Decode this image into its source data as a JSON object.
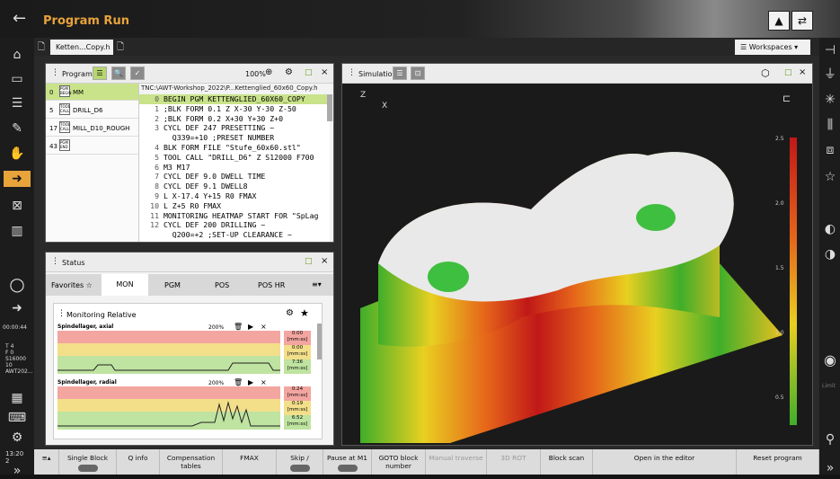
{
  "header": {
    "title": "Program Run"
  },
  "left_status": {
    "time1": "00:00:44",
    "t": "T",
    "t_val": "4",
    "f": "F",
    "f_val": "0",
    "s": "S",
    "s_val": "16000",
    "t2": "10",
    "tool": "AWT202...",
    "clock": "13:20",
    "clock2": "2"
  },
  "tabs": [
    {
      "label": "Ketten...Copy.h"
    }
  ],
  "workspaces_label": "Workspaces",
  "program_panel": {
    "title": "Program",
    "zoom": "100%",
    "path": "TNC:\\AWT-Workshop_2022\\P...Kettenglied_60x60_Copy.h",
    "tools": [
      {
        "num": "0",
        "badge": "PGM BEGIN",
        "name": "MM"
      },
      {
        "num": "5",
        "badge": "TOOL CALL",
        "name": "DRILL_D6"
      },
      {
        "num": "17",
        "badge": "TOOL CALL",
        "name": "MILL_D10_ROUGH"
      },
      {
        "num": "43",
        "badge": "PGM END",
        "name": ""
      }
    ],
    "lines": [
      {
        "n": "0",
        "t": "BEGIN PGM KETTENGLIED_60X60_COPY"
      },
      {
        "n": "1",
        "t": ";BLK FORM 0.1 Z X-30 Y-30 Z-50"
      },
      {
        "n": "2",
        "t": ";BLK FORM 0.2 X+30 Y+30 Z+0"
      },
      {
        "n": "3",
        "t": "CYCL DEF 247 PRESETTING ~"
      },
      {
        "n": "",
        "t": "  Q339=+10 ;PRESET NUMBER"
      },
      {
        "n": "4",
        "t": "BLK FORM FILE \"Stufe_60x60.stl\""
      },
      {
        "n": "5",
        "t": "TOOL CALL \"DRILL_D6\" Z S12000 F700"
      },
      {
        "n": "6",
        "t": "M3 M17"
      },
      {
        "n": "7",
        "t": "CYCL DEF 9.0 DWELL TIME"
      },
      {
        "n": "8",
        "t": "CYCL DEF 9.1 DWELL8"
      },
      {
        "n": "9",
        "t": "L X-17.4 Y+15 R0 FMAX"
      },
      {
        "n": "10",
        "t": "L Z+5 R0 FMAX"
      },
      {
        "n": "11",
        "t": "MONITORING HEATMAP START FOR \"SpLag"
      },
      {
        "n": "12",
        "t": "CYCL DEF 200 DRILLING ~"
      },
      {
        "n": "",
        "t": "  Q200=+2 ;SET-UP CLEARANCE ~"
      }
    ]
  },
  "status_panel": {
    "title": "Status",
    "tabs": [
      "Favorites",
      "MON",
      "PGM",
      "POS",
      "POS HR"
    ],
    "section": "Monitoring Relative",
    "charts": [
      {
        "name": "Spindellager, axial",
        "zoom": "200%",
        "vals": [
          "0:00",
          "[mm:ss]",
          "0:00",
          "[mm:ss]",
          "7:36",
          "[mm:ss]"
        ]
      },
      {
        "name": "Spindellager, radial",
        "zoom": "200%",
        "vals": [
          "0:24",
          "[mm:ss]",
          "0:19",
          "[mm:ss]",
          "6:52",
          "[mm:ss]"
        ]
      }
    ]
  },
  "simulation_panel": {
    "title": "Simulation",
    "axis_z": "Z",
    "axis_x": "X",
    "scale": [
      "2.5",
      "2.0",
      "1.5",
      "1.0",
      "0.5"
    ]
  },
  "bottom": [
    {
      "label": "Single Block"
    },
    {
      "label": "Q info"
    },
    {
      "label": "Compensation tables"
    },
    {
      "label": "FMAX"
    },
    {
      "label": "Skip /"
    },
    {
      "label": "Pause at M1"
    },
    {
      "label": "GOTO block number"
    },
    {
      "label": "Manual traverse"
    },
    {
      "label": "3D ROT"
    },
    {
      "label": "Block scan"
    },
    {
      "label": "Open in the editor"
    },
    {
      "label": "Reset program"
    }
  ],
  "right_limit": "Limit"
}
